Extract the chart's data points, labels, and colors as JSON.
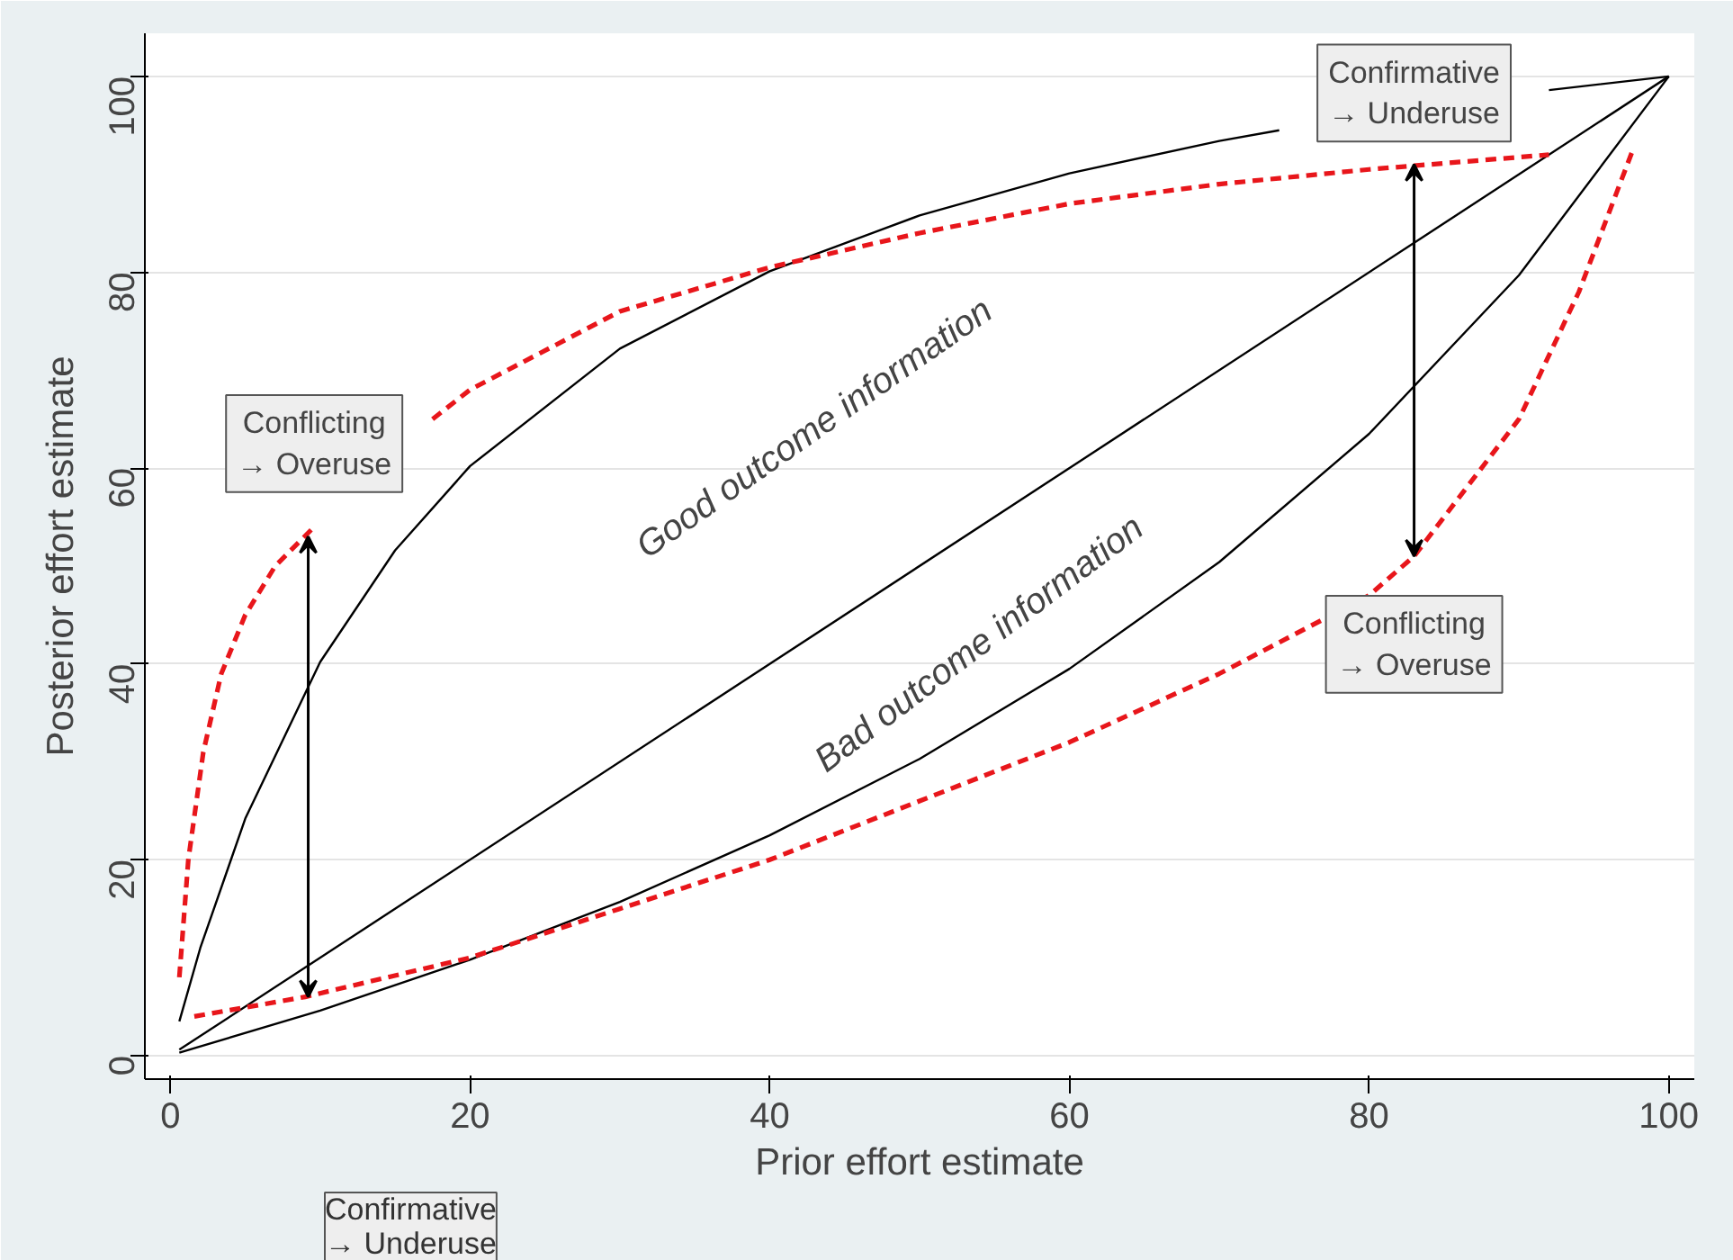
{
  "chart_data": {
    "type": "line",
    "xlabel": "Prior effort estimate",
    "ylabel": "Posterior effort estimate",
    "xlim": [
      -1.7,
      101.7
    ],
    "ylim": [
      -2.4,
      104.4
    ],
    "xticks": [
      0,
      20,
      40,
      60,
      80,
      100
    ],
    "yticks": [
      0,
      20,
      40,
      60,
      80,
      100
    ],
    "grid": "y",
    "series": [
      {
        "color": "#000000",
        "line_style": "solid",
        "x": [
          0.6,
          100
        ],
        "values": [
          0.6,
          100
        ]
      },
      {
        "color": "#000000",
        "line_style": "solid",
        "x": [
          0.6,
          2,
          5,
          10,
          15,
          20,
          30,
          40,
          50,
          60,
          70,
          74,
          80,
          90,
          92,
          100
        ],
        "values": [
          3.5,
          11.0,
          24.2,
          40.2,
          51.6,
          60.2,
          72.2,
          80.1,
          85.8,
          90.1,
          93.4,
          94.5,
          null,
          null,
          98.6,
          100
        ]
      },
      {
        "color": "#000000",
        "line_style": "solid",
        "x": [
          0.6,
          10,
          20,
          30,
          40,
          50,
          60,
          70,
          80,
          90,
          100
        ],
        "values": [
          0.3,
          4.6,
          9.8,
          15.7,
          22.5,
          30.3,
          39.5,
          50.4,
          63.5,
          79.7,
          100
        ]
      },
      {
        "color": "#e8161b",
        "line_style": "dashed",
        "x": [
          0.6,
          1.2,
          2.2,
          3.4,
          5,
          7,
          9.6,
          13,
          17.5,
          20,
          30,
          40,
          50,
          60,
          70,
          80,
          92
        ],
        "values": [
          8,
          20,
          31,
          39,
          45,
          50,
          54,
          null,
          65,
          68,
          76,
          80.5,
          84,
          87,
          89,
          90.5,
          92
        ]
      },
      {
        "color": "#e8161b",
        "line_style": "dashed",
        "x": [
          1.6,
          9,
          20,
          30,
          40,
          50,
          60,
          70,
          80,
          83,
          90,
          94,
          97.6
        ],
        "values": [
          4,
          6,
          10,
          15,
          20,
          26,
          32,
          39,
          47,
          51,
          65,
          78,
          92.5
        ]
      }
    ],
    "annotations": [
      "Conflicting\n→ Overuse",
      "Confirmative\n→ Underuse",
      "Confirmative\n→ Underuse",
      "Conflicting\n→ Overuse",
      "Good outcome information",
      "Bad outcome information"
    ]
  }
}
